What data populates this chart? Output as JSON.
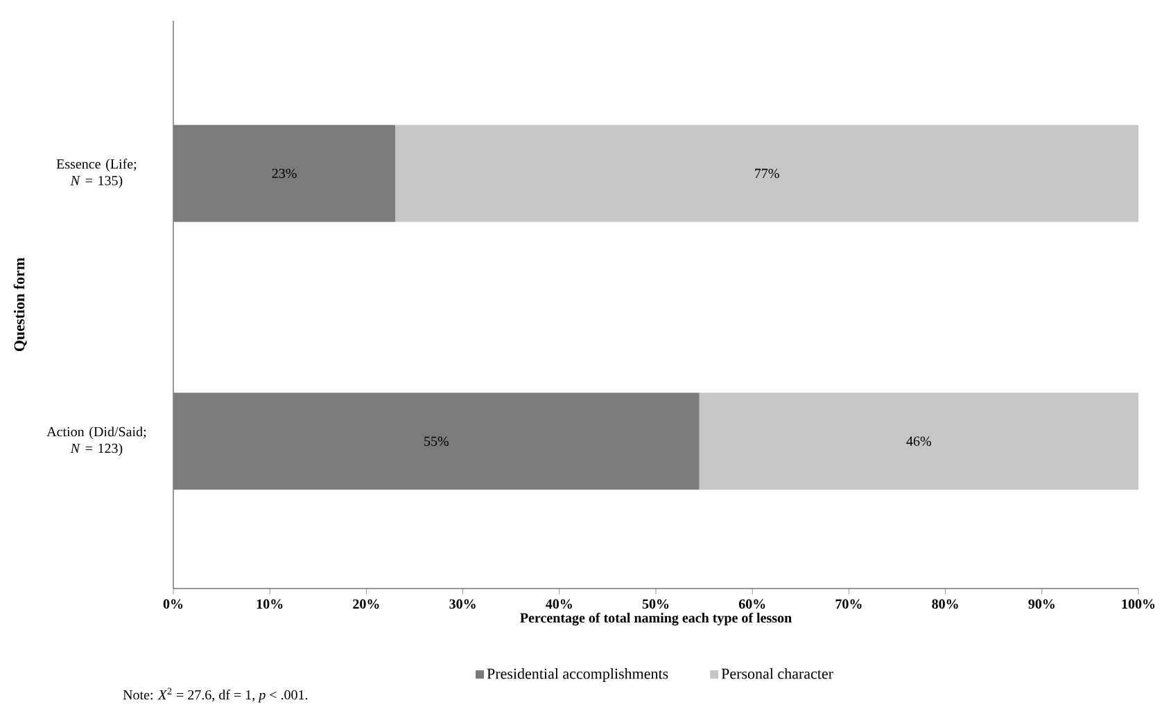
{
  "chart_data": {
    "type": "bar",
    "orientation": "horizontal",
    "stacked": true,
    "categories": [
      "Essence (Life; *N* = 135)",
      "Action (Did/Said; *N* = 123)"
    ],
    "series": [
      {
        "name": "Presidential accomplishments",
        "color": "#7b7b7b",
        "values": [
          23,
          54.5
        ],
        "value_labels": [
          "23%",
          "55%"
        ]
      },
      {
        "name": "Personal character",
        "color": "#c6c6c6",
        "values": [
          77,
          45.5
        ],
        "value_labels": [
          "77%",
          "46%"
        ]
      }
    ],
    "xlim": [
      0,
      100
    ],
    "xticks": [
      {
        "value": 0,
        "label": "0%"
      },
      {
        "value": 10,
        "label": "10%"
      },
      {
        "value": 20,
        "label": "20%"
      },
      {
        "value": 30,
        "label": "30%"
      },
      {
        "value": 40,
        "label": "40%"
      },
      {
        "value": 50,
        "label": "50%"
      },
      {
        "value": 60,
        "label": "60%"
      },
      {
        "value": 70,
        "label": "70%"
      },
      {
        "value": 80,
        "label": "80%"
      },
      {
        "value": 90,
        "label": "90%"
      },
      {
        "value": 100,
        "label": "100%"
      }
    ],
    "xlabel": "Percentage of total naming each type of lesson",
    "ylabel": "Question form",
    "legend": "bottom",
    "grid": false,
    "annotations": [
      "Note: *X*$^{2}$ = 27.6, df = 1, *p* < .001."
    ]
  }
}
